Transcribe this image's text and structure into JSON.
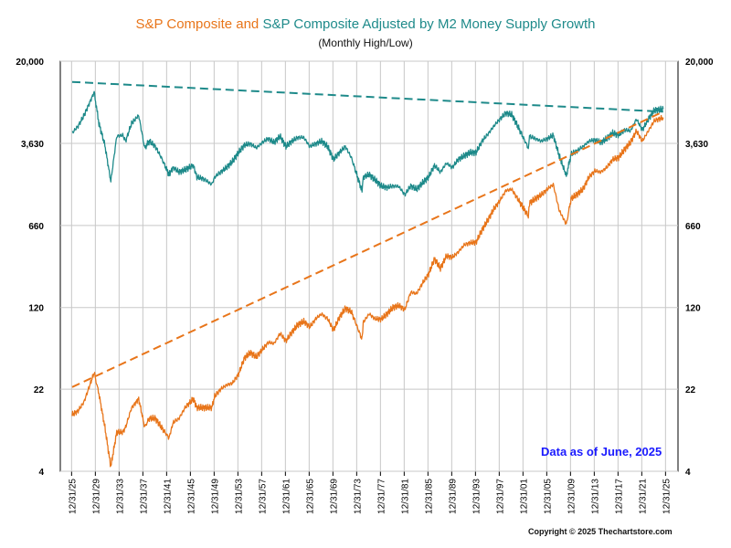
{
  "title": {
    "part1": "S&P Composite",
    "part2": " and ",
    "part3": "S&P Composite Adjusted by M2 Money Supply Growth",
    "color_orange": "#e8751a",
    "color_teal": "#1e8a8a"
  },
  "subtitle": "(Monthly High/Low)",
  "note": "Data as of June, 2025",
  "copyright": "Copyright © 2025 Thechartstore.com",
  "chart_data": {
    "type": "line",
    "y_scale": "log",
    "ylim": [
      4,
      20000
    ],
    "y_ticks": [
      {
        "value": 4,
        "label": "4"
      },
      {
        "value": 22,
        "label": "22"
      },
      {
        "value": 120,
        "label": "120"
      },
      {
        "value": 660,
        "label": "660"
      },
      {
        "value": 3630,
        "label": "3,630"
      },
      {
        "value": 20000,
        "label": "20,000"
      }
    ],
    "x_ticks": [
      "12/31/25",
      "12/31/29",
      "12/31/33",
      "12/31/37",
      "12/31/41",
      "12/31/45",
      "12/31/49",
      "12/31/53",
      "12/31/57",
      "12/31/61",
      "12/31/65",
      "12/31/69",
      "12/31/73",
      "12/31/77",
      "12/31/81",
      "12/31/85",
      "12/31/89",
      "12/31/93",
      "12/31/97",
      "12/31/01",
      "12/31/05",
      "12/31/09",
      "12/31/13",
      "12/31/17",
      "12/31/21",
      "12/31/25"
    ],
    "xlim": [
      1924,
      2028
    ],
    "grid": true,
    "series": [
      {
        "color": "#e8751a",
        "x": [
          1926,
          1927,
          1928,
          1929.7,
          1930.5,
          1931.5,
          1932.5,
          1933.5,
          1934.5,
          1935,
          1936,
          1937.2,
          1938.2,
          1939,
          1940,
          1941,
          1942.3,
          1943,
          1944,
          1945,
          1946.4,
          1947,
          1948,
          1949.5,
          1950,
          1951,
          1952,
          1953,
          1954,
          1955,
          1956,
          1957,
          1958,
          1959,
          1960,
          1961,
          1962,
          1963,
          1964,
          1965,
          1966,
          1967,
          1968,
          1969,
          1970,
          1971,
          1972,
          1973,
          1974.8,
          1975,
          1976,
          1977,
          1978,
          1979,
          1980,
          1981,
          1982,
          1983,
          1984,
          1985,
          1986,
          1987,
          1988,
          1989,
          1990,
          1991,
          1992,
          1993,
          1994,
          1995,
          1996,
          1997,
          1998,
          1999,
          2000,
          2001,
          2002.8,
          2003,
          2004,
          2005,
          2006,
          2007,
          2008,
          2009.2,
          2010,
          2011,
          2012,
          2013,
          2014,
          2015,
          2016,
          2017,
          2018,
          2019,
          2020,
          2021,
          2022,
          2023,
          2024,
          2025.5
        ],
        "y": [
          13,
          14,
          17,
          31,
          20,
          10,
          4.4,
          9,
          9,
          10,
          15,
          18,
          10,
          12,
          12,
          10,
          8,
          11,
          12,
          15,
          18,
          15,
          15,
          15,
          19,
          22,
          24,
          25,
          30,
          42,
          47,
          43,
          50,
          58,
          57,
          70,
          60,
          72,
          84,
          90,
          80,
          95,
          105,
          95,
          75,
          98,
          118,
          110,
          62,
          88,
          105,
          95,
          94,
          105,
          120,
          125,
          115,
          165,
          160,
          200,
          240,
          330,
          270,
          350,
          340,
          380,
          440,
          460,
          465,
          600,
          740,
          930,
          1100,
          1360,
          1400,
          1150,
          800,
          1050,
          1150,
          1250,
          1400,
          1550,
          900,
          680,
          1150,
          1260,
          1400,
          1800,
          2050,
          2000,
          2200,
          2600,
          2700,
          3200,
          3700,
          4700,
          3800,
          4700,
          5800,
          6200
        ]
      },
      {
        "color": "#1e8a8a",
        "x": [
          1926,
          1927,
          1928,
          1929.7,
          1930.5,
          1931.5,
          1932.5,
          1933.5,
          1934.5,
          1935,
          1936,
          1937.2,
          1938.2,
          1939,
          1940,
          1941,
          1942.3,
          1943,
          1944,
          1945,
          1946.4,
          1947,
          1948,
          1949.5,
          1950,
          1951,
          1952,
          1953,
          1954,
          1955,
          1956,
          1957,
          1958,
          1959,
          1960,
          1961,
          1962,
          1963,
          1964,
          1965,
          1966,
          1967,
          1968,
          1969,
          1970,
          1971,
          1972,
          1973,
          1974.8,
          1975,
          1976,
          1977,
          1978,
          1979,
          1980,
          1981,
          1982,
          1983,
          1984,
          1985,
          1986,
          1987,
          1988,
          1989,
          1990,
          1991,
          1992,
          1993,
          1994,
          1995,
          1996,
          1997,
          1998,
          1999,
          2000,
          2001,
          2002.8,
          2003,
          2004,
          2005,
          2006,
          2007,
          2008,
          2009.2,
          2010,
          2011,
          2012,
          2013,
          2014,
          2015,
          2016,
          2017,
          2018,
          2019,
          2020,
          2021,
          2022,
          2023,
          2024,
          2025.5
        ],
        "y": [
          4500,
          5200,
          6500,
          10500,
          5500,
          3500,
          1650,
          4200,
          4300,
          3800,
          5500,
          6500,
          3300,
          3800,
          3400,
          2700,
          1900,
          2200,
          2000,
          2100,
          2300,
          1800,
          1750,
          1550,
          1800,
          2000,
          2200,
          2500,
          3000,
          3500,
          3600,
          3300,
          3700,
          4000,
          3700,
          4200,
          3400,
          3800,
          4100,
          4100,
          3400,
          3600,
          3800,
          3400,
          2600,
          3000,
          3400,
          2700,
          1350,
          1800,
          1900,
          1700,
          1500,
          1450,
          1500,
          1480,
          1250,
          1500,
          1400,
          1600,
          1800,
          2300,
          2000,
          2400,
          2200,
          2600,
          2800,
          3000,
          3000,
          3800,
          4400,
          5200,
          6000,
          6800,
          6600,
          5200,
          3300,
          4200,
          4000,
          3800,
          4000,
          4300,
          2800,
          1850,
          2900,
          3100,
          3400,
          3800,
          3900,
          3700,
          4000,
          4500,
          4300,
          4800,
          4700,
          6000,
          4800,
          6000,
          7200,
          7400
        ]
      },
      {
        "color": "#e8751a",
        "style": "dashed",
        "x": [
          1926,
          2025.5
        ],
        "y": [
          23,
          7000
        ]
      },
      {
        "color": "#1e8a8a",
        "style": "dashed",
        "x": [
          1926,
          2025.5
        ],
        "y": [
          13000,
          7000
        ]
      }
    ]
  }
}
